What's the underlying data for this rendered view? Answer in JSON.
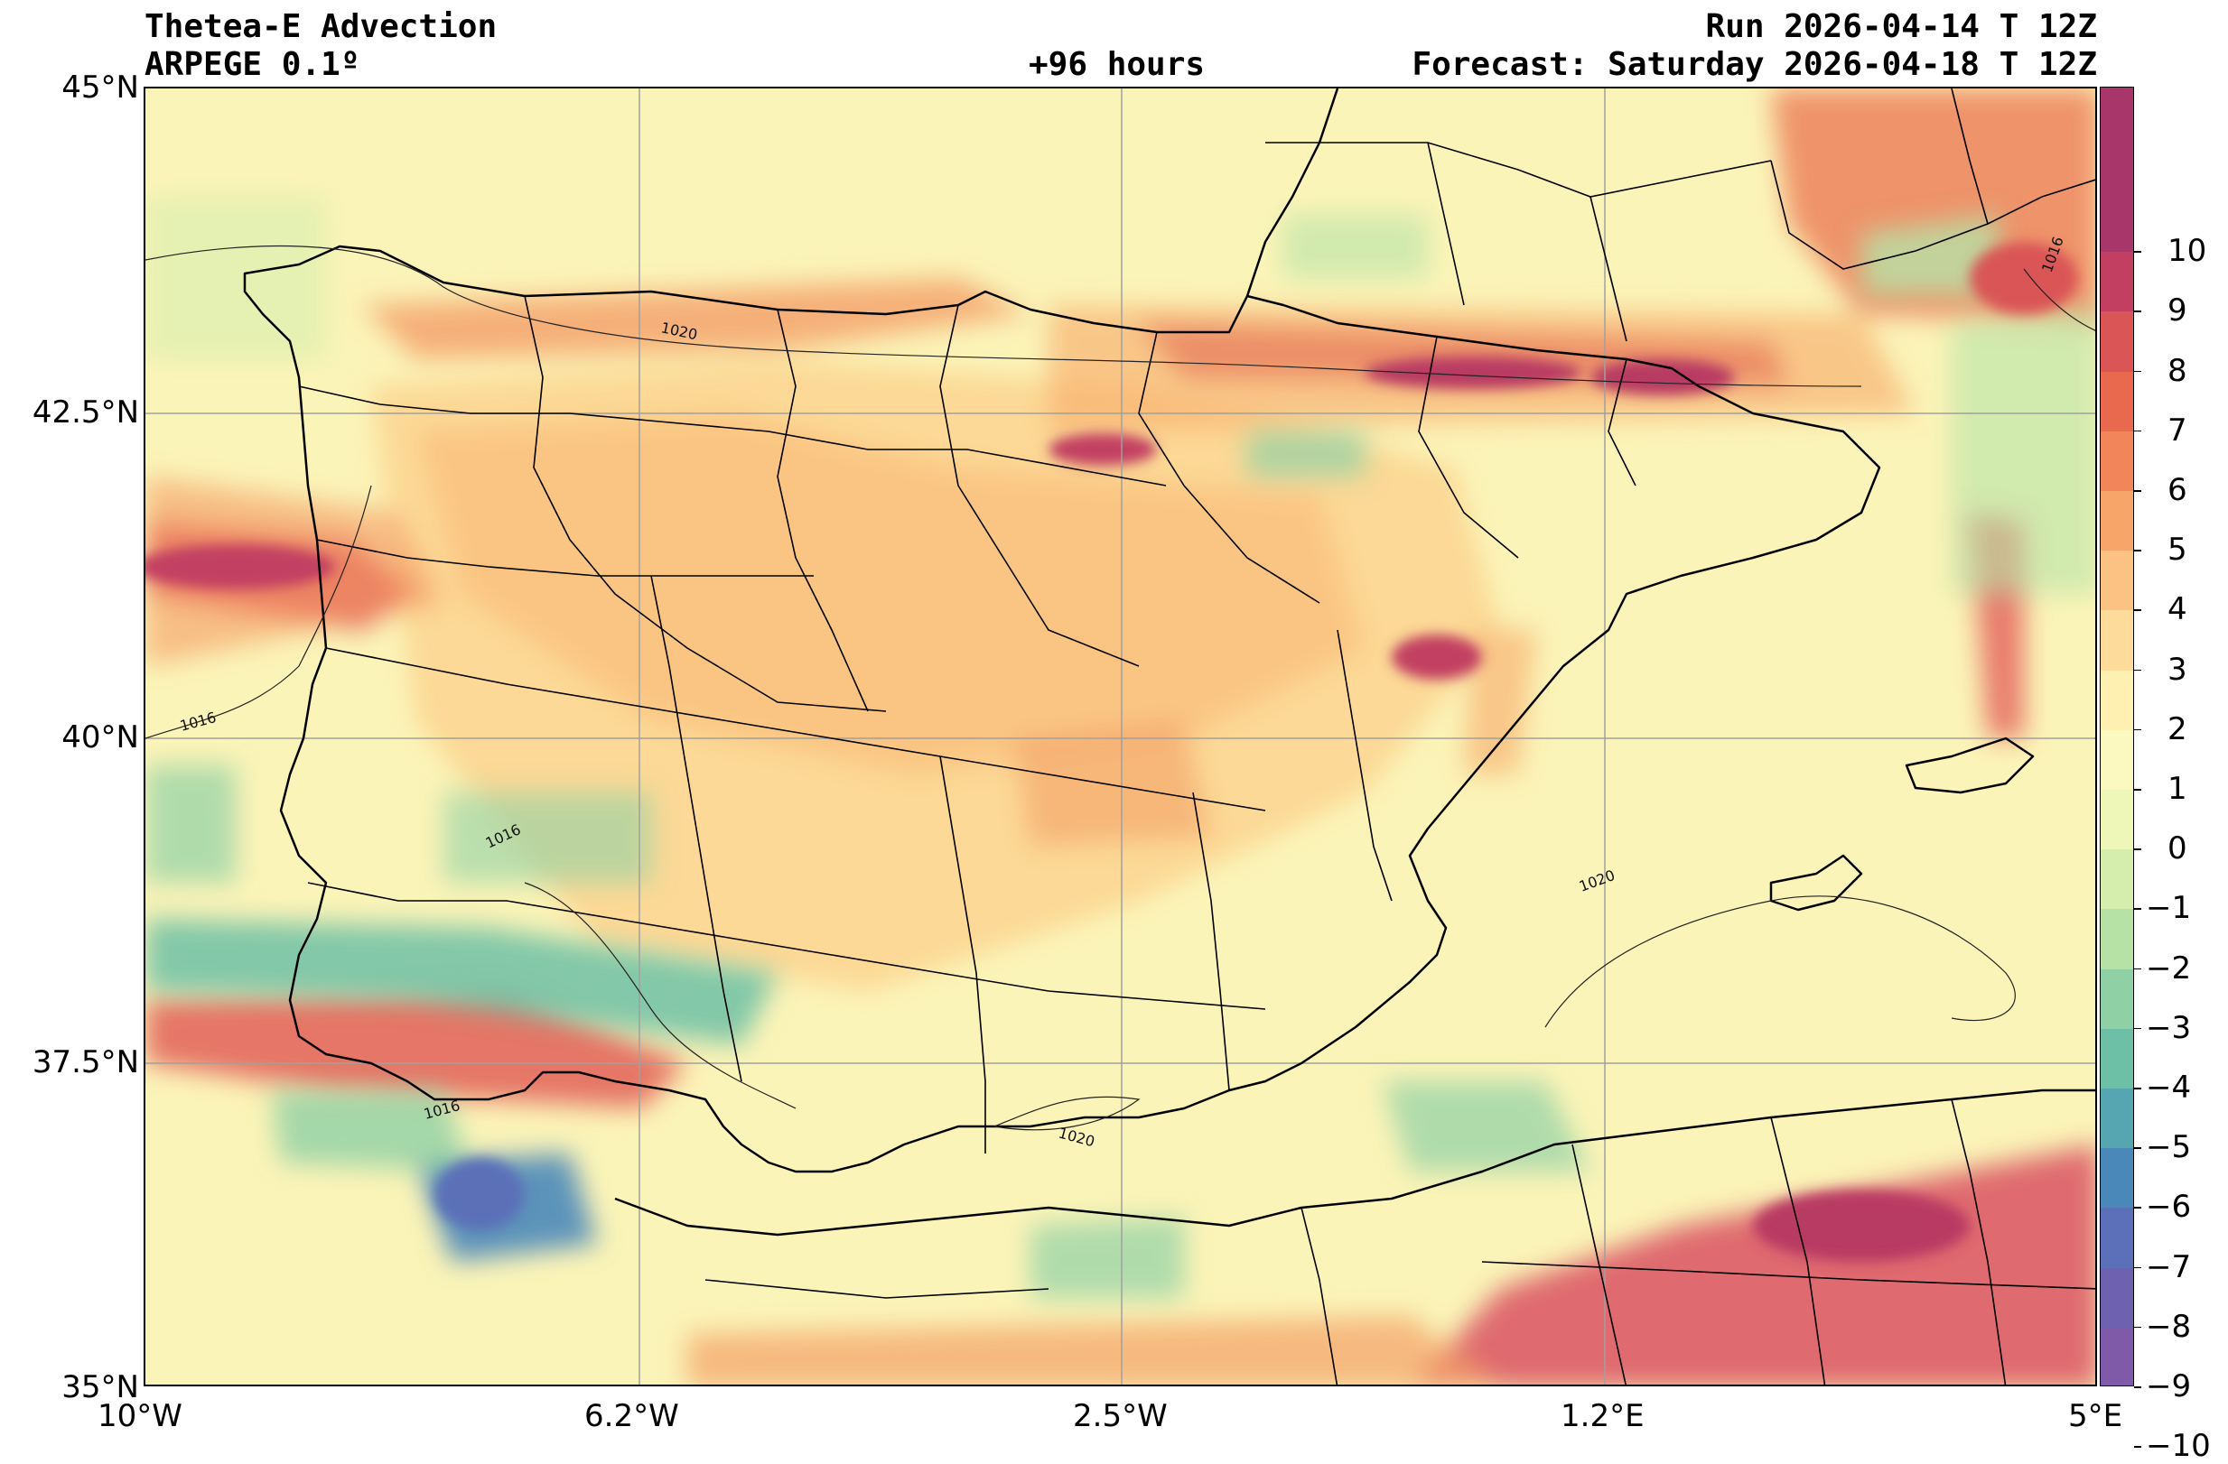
{
  "header": {
    "title": "Thetea-E Advection",
    "model": "ARPEGE 0.1º",
    "lead": "+96 hours",
    "run": "Run 2026-04-14 T 12Z",
    "forecast": "Forecast: Saturday 2026-04-18 T 12Z"
  },
  "axes": {
    "lat_labels": [
      "45°N",
      "42.5°N",
      "40°N",
      "37.5°N",
      "35°N"
    ],
    "lon_labels": [
      "10°W",
      "6.2°W",
      "2.5°W",
      "1.2°E",
      "5°E"
    ]
  },
  "isobar_labels": [
    "1020",
    "1016",
    "1016",
    "1016",
    "1020",
    "1020",
    "1016"
  ],
  "colorbar": {
    "ticks": [
      "10",
      "9",
      "8",
      "7",
      "6",
      "5",
      "4",
      "3",
      "2",
      "1",
      "0",
      "−1",
      "−2",
      "−3",
      "−4",
      "−5",
      "−6",
      "−7",
      "−8",
      "−9",
      "−10"
    ],
    "colors": [
      "#a8366a",
      "#c23f62",
      "#d95556",
      "#e8694e",
      "#f2865a",
      "#f8a56a",
      "#fbc283",
      "#fddb9a",
      "#fdf0b0",
      "#fbf8c0",
      "#eef6b8",
      "#d5eeae",
      "#b6e2a6",
      "#8fd0a5",
      "#6dbfa6",
      "#56a6b2",
      "#4b88ba",
      "#5b70b8",
      "#6e62b0",
      "#7f5aa8"
    ]
  },
  "legend": {
    "field": "Theta-E advection",
    "min": -10,
    "max": 10
  }
}
